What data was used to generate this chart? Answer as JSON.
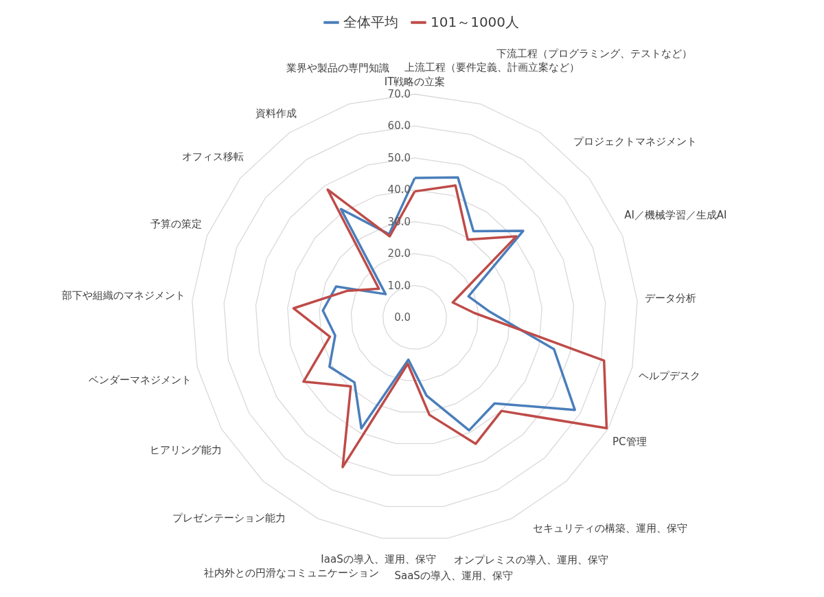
{
  "chart_data": {
    "type": "radar",
    "categories": [
      "IT戦略の立案",
      "上流工程（要件定義、計画立案など）",
      "下流工程（プログラミング、テストなど）",
      "プロジェクトマネジメント",
      "AI／機械学習／生成AI",
      "データ分析",
      "ヘルプデスク",
      "PC管理",
      "セキュリティの構築、運用、保守",
      "オンプレミスの導入、運用、保守",
      "SaaSの導入、運用、保守",
      "IaaSの導入、運用、保守",
      "社内外との円滑なコミュニケーション",
      "プレゼンテーション能力",
      "ヒアリング能力",
      "ベンダーマネジメント",
      "部下や組織のマネジメント",
      "予算の策定",
      "オフィス移転",
      "資料作成",
      "業界や製品の専門知識"
    ],
    "series": [
      {
        "name": "全体平均",
        "color": "#4a7ebb",
        "values": [
          43.7,
          45.9,
          32.7,
          43.5,
          18.1,
          23.6,
          44.8,
          58.0,
          36.8,
          39.3,
          24.8,
          13.4,
          38.6,
          27.8,
          30.9,
          25.6,
          28.9,
          26.5,
          11.7,
          41.1,
          27.3
        ]
      },
      {
        "name": "101～1000人",
        "color": "#be4b48",
        "values": [
          39.5,
          43.3,
          29.5,
          40.8,
          12.8,
          18.7,
          60.9,
          69.5,
          40.0,
          44.0,
          30.9,
          14.7,
          52.1,
          29.5,
          40.3,
          27.3,
          38.1,
          22.8,
          14.4,
          48.5,
          26.6
        ]
      }
    ],
    "ylim": [
      0,
      70
    ],
    "yticks": [
      {
        "value": 0,
        "label": "0.0"
      },
      {
        "value": 10,
        "label": "10.0"
      },
      {
        "value": 20,
        "label": "20.0"
      },
      {
        "value": 30,
        "label": "30.0"
      },
      {
        "value": 40,
        "label": "40.0"
      },
      {
        "value": 50,
        "label": "50.0"
      },
      {
        "value": 60,
        "label": "60.0"
      },
      {
        "value": 70,
        "label": "70.0"
      }
    ],
    "grid": true,
    "legend": "top"
  }
}
